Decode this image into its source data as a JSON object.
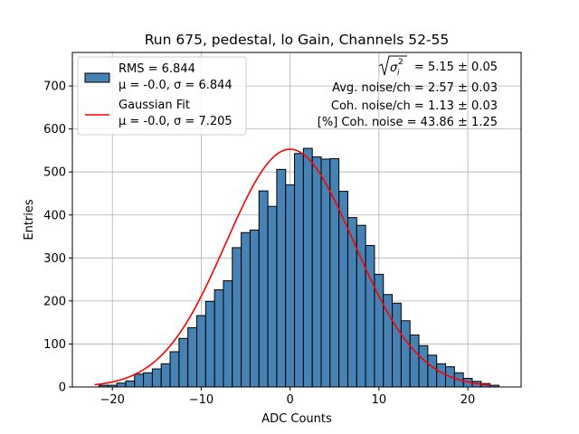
{
  "chart_data": {
    "type": "bar",
    "title": "Run 675, pedestal, lo Gain, Channels 52-55",
    "xlabel": "ADC Counts",
    "ylabel": "Entries",
    "xlim": [
      -24.5,
      26
    ],
    "ylim": [
      0,
      778
    ],
    "grid": true,
    "x_ticks": [
      -20,
      -10,
      0,
      10,
      20
    ],
    "x_tick_labels": [
      "−20",
      "−10",
      "0",
      "10",
      "20"
    ],
    "y_ticks": [
      0,
      100,
      200,
      300,
      400,
      500,
      600,
      700
    ],
    "y_tick_labels": [
      "0",
      "100",
      "200",
      "300",
      "400",
      "500",
      "600",
      "700"
    ],
    "bin_width": 1,
    "bin_centers": [
      -21,
      -20,
      -19,
      -18,
      -17,
      -16,
      -15,
      -14,
      -13,
      -12,
      -11,
      -10,
      -9,
      -8,
      -7,
      -6,
      -5,
      -4,
      -3,
      -2,
      -1,
      0,
      1,
      2,
      3,
      4,
      5,
      6,
      7,
      8,
      9,
      10,
      11,
      12,
      13,
      14,
      15,
      16,
      17,
      18,
      19,
      20,
      21,
      22,
      23
    ],
    "counts": [
      4,
      4,
      9,
      14,
      30,
      33,
      42,
      54,
      82,
      113,
      138,
      166,
      199,
      226,
      247,
      324,
      359,
      365,
      456,
      420,
      506,
      470,
      543,
      555,
      535,
      530,
      531,
      455,
      394,
      376,
      329,
      262,
      215,
      195,
      154,
      121,
      96,
      74,
      54,
      47,
      33,
      20,
      13,
      8,
      4
    ],
    "bar_color": "#4682b4",
    "bar_edge_color": "#000000",
    "fit": {
      "name": "Gaussian Fit",
      "mu": 0.0,
      "sigma": 7.205,
      "amplitude": 553,
      "x_range": [
        -22,
        22.5
      ],
      "color": "#ff0000"
    },
    "legend": {
      "location": "upper left",
      "entries": [
        {
          "line1": "RMS = 6.844",
          "line2": "μ = -0.0, σ = 6.844",
          "kind": "patch"
        },
        {
          "line1": "Gaussian Fit",
          "line2": "μ = -0.0, σ = 7.205",
          "kind": "line"
        }
      ]
    },
    "annotations": {
      "sigma_sqrt_value": "= 5.15 ± 0.05",
      "avg_noise": "Avg. noise/ch = 2.57 ± 0.03",
      "coh_noise": "Coh. noise/ch = 1.13 ± 0.03",
      "pct_coh_noise": "[%] Coh. noise = 43.86 ± 1.25"
    }
  }
}
